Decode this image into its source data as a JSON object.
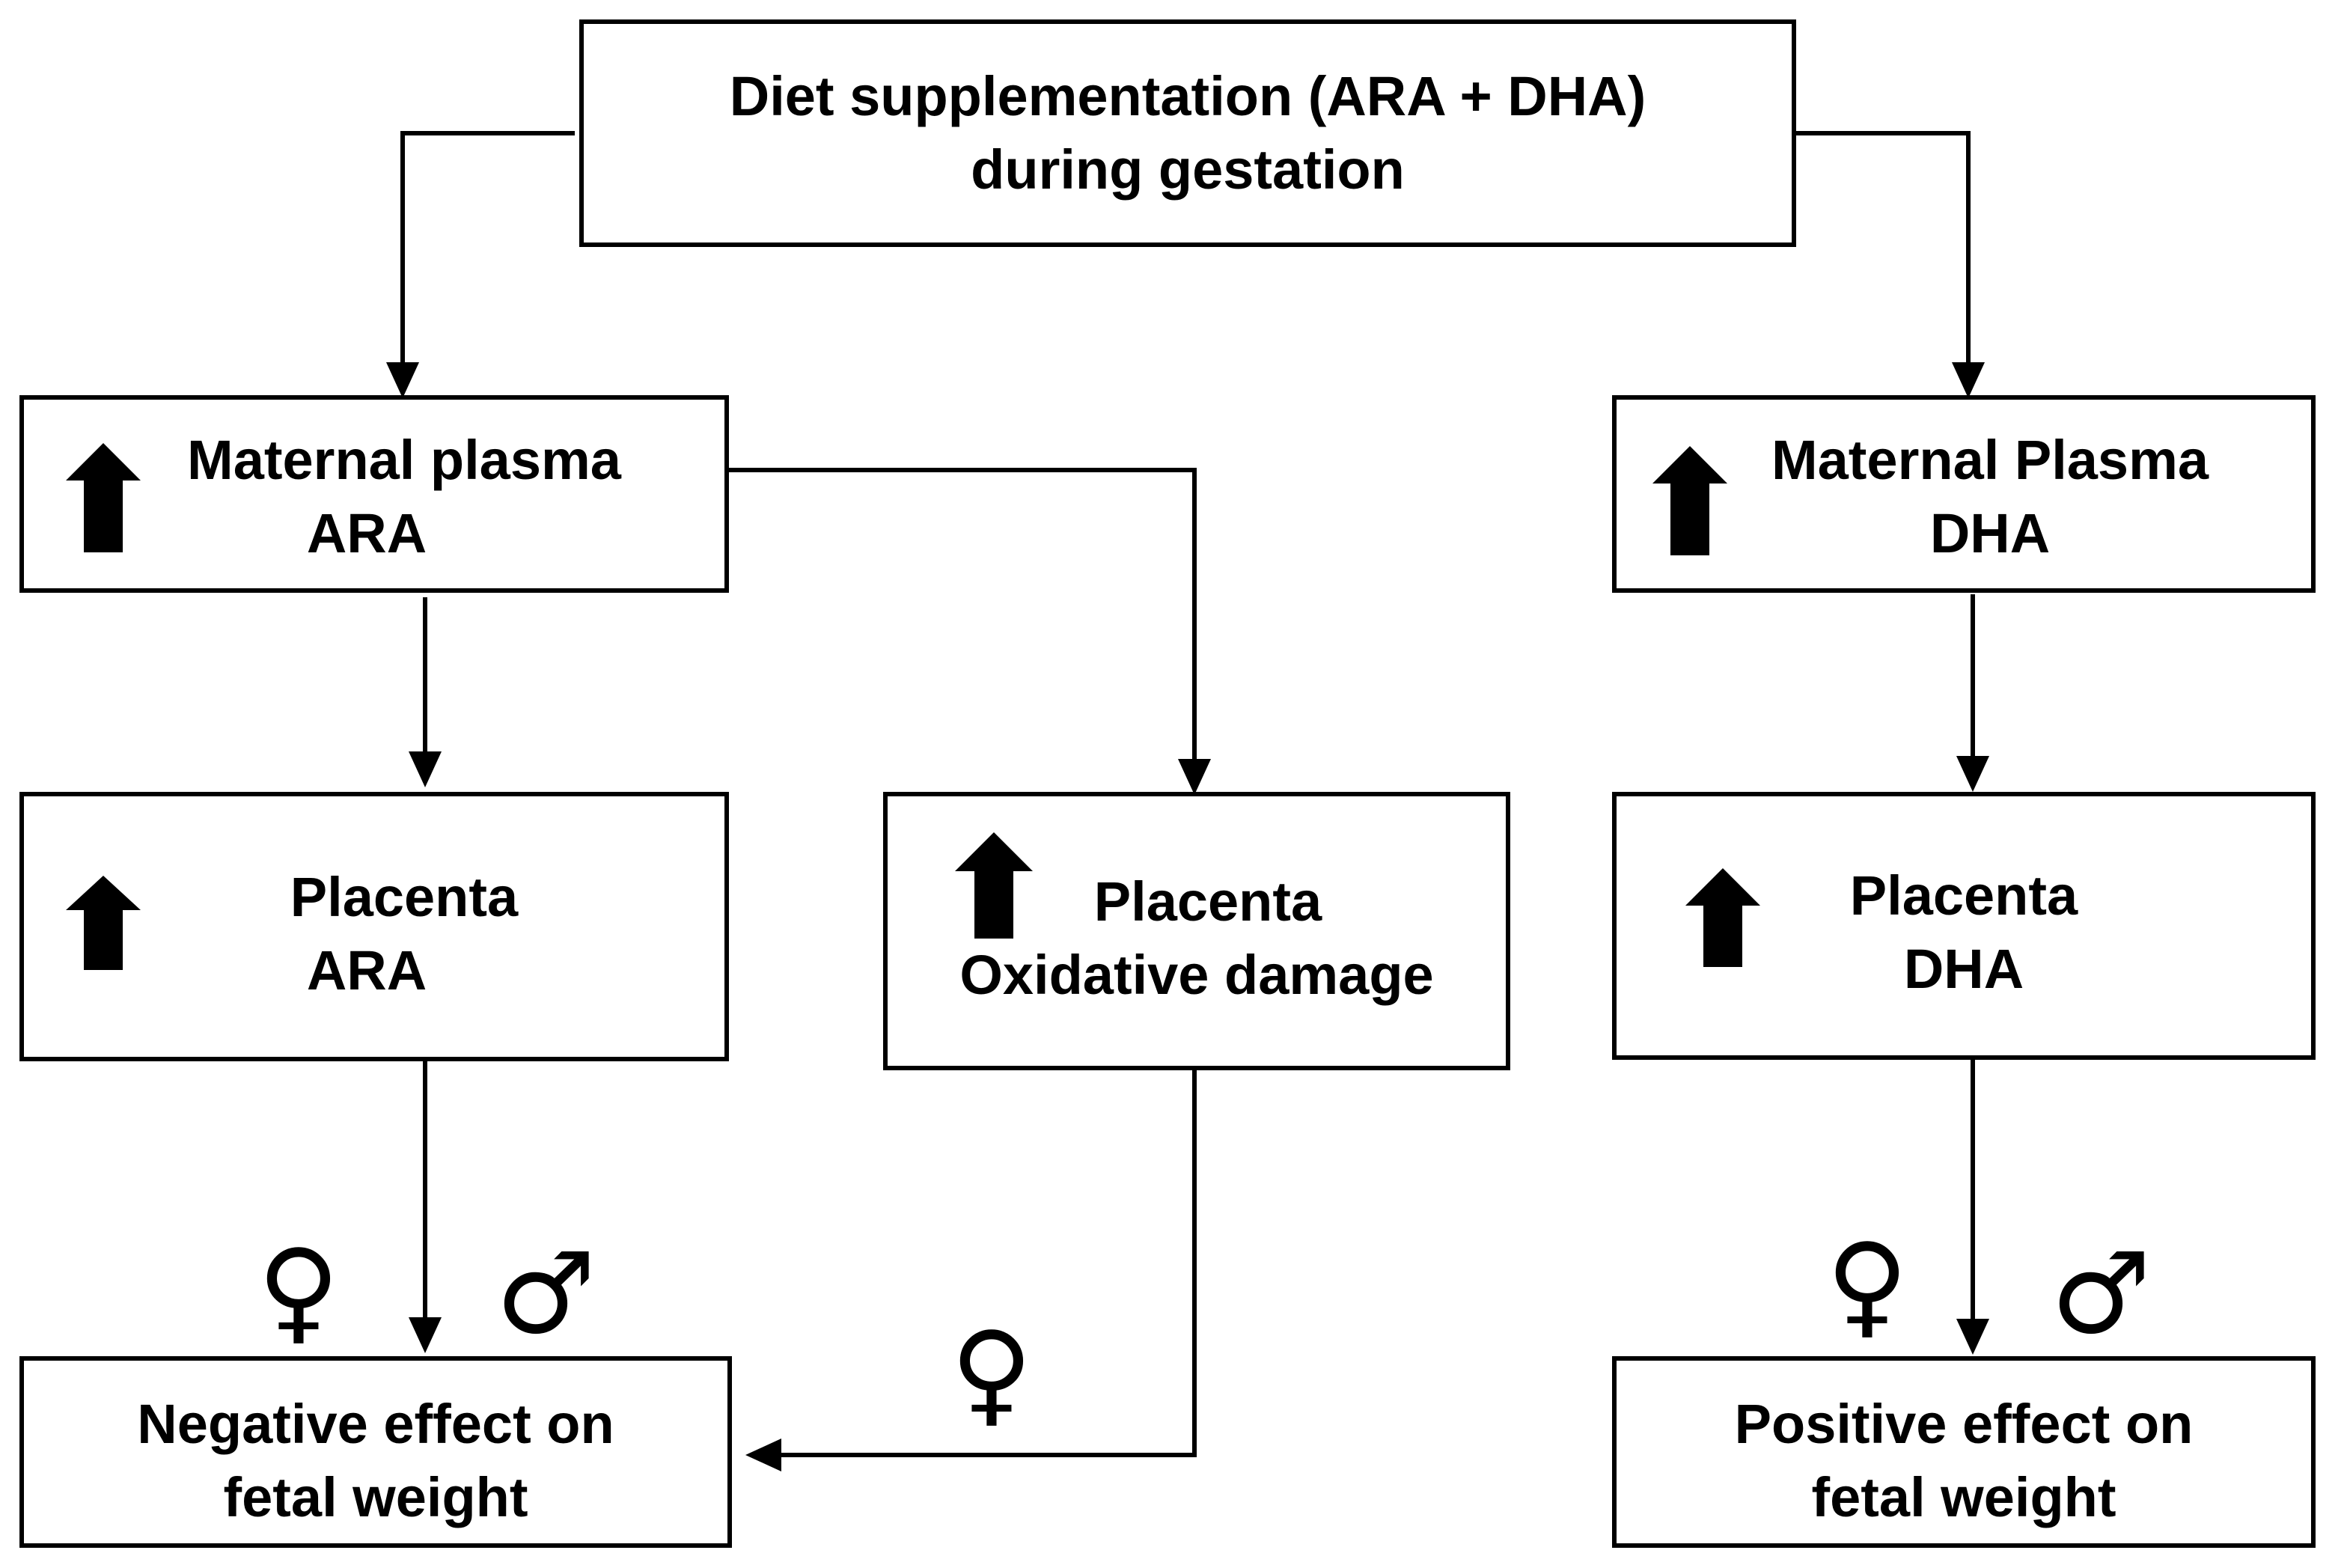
{
  "nodes": {
    "diet": {
      "line1": "Diet supplementation (ARA + DHA)",
      "line2": "during gestation"
    },
    "maternal_ara": {
      "line1": "Maternal plasma",
      "line2": "ARA",
      "indicator": "up-arrow-icon"
    },
    "maternal_dha": {
      "line1": "Maternal Plasma",
      "line2": "DHA",
      "indicator": "up-arrow-icon"
    },
    "placenta_ara": {
      "line1": "Placenta",
      "line2": "ARA",
      "indicator": "up-arrow-icon"
    },
    "placenta_oxidative": {
      "line1": "Placenta",
      "line2": "Oxidative damage",
      "indicator": "up-arrow-icon"
    },
    "placenta_dha": {
      "line1": "Placenta",
      "line2": "DHA",
      "indicator": "up-arrow-icon"
    },
    "negative_effect": {
      "line1": "Negative effect on",
      "line2": "fetal weight"
    },
    "positive_effect": {
      "line1": "Positive effect on",
      "line2": "fetal weight"
    }
  },
  "symbols": {
    "female": "♀",
    "male": "♂"
  },
  "edges": [
    {
      "from": "diet",
      "to": "maternal_ara"
    },
    {
      "from": "diet",
      "to": "maternal_dha"
    },
    {
      "from": "maternal_ara",
      "to": "placenta_ara"
    },
    {
      "from": "maternal_ara",
      "to": "placenta_oxidative"
    },
    {
      "from": "maternal_dha",
      "to": "placenta_dha"
    },
    {
      "from": "placenta_ara",
      "to": "negative_effect",
      "labels": [
        "♀",
        "♂"
      ]
    },
    {
      "from": "placenta_oxidative",
      "to": "negative_effect",
      "labels": [
        "♀"
      ]
    },
    {
      "from": "placenta_dha",
      "to": "positive_effect",
      "labels": [
        "♀",
        "♂"
      ]
    }
  ],
  "colors": {
    "stroke": "#000000",
    "fill": "#ffffff"
  }
}
